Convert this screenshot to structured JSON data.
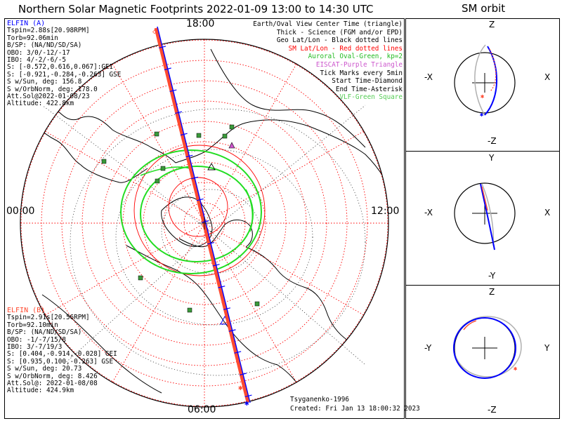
{
  "title": "Northern Solar Magnetic Footprints 2022-01-09 13:00 to 14:30 UTC",
  "orbit_title": "SM orbit",
  "colors": {
    "probe_a": "#0000ff",
    "probe_b": "#ff4a30",
    "geo_grid": "#000000",
    "sm_grid": "#ff0000",
    "auroral_oval": "#22dd22",
    "eiscat": "#cc55cc",
    "vlf": "#3a9a3a",
    "orbit_ghost": "#b0b0b0"
  },
  "probe_a": {
    "name": "ELFIN (A)",
    "lines": [
      "Tspin=2.88s[20.98RPM]",
      "Torb=92.06min",
      "B/SP: (NA/ND/SD/SA)",
      "OBO: 3/0/-12/-17",
      "IBO: 4/-2/-6/-5",
      "S: [-0.572,0.616,0.067]:GEI",
      "S: [-0.921,-0.284,-0.263] GSE",
      "S w/Sun, deg: 156.8",
      "S w/OrbNorm, deg: 178.0",
      "Att.Sol@2022-01-08/23",
      "Altitude: 422.8km"
    ]
  },
  "probe_b": {
    "name": "ELFIN (B)",
    "lines": [
      "Tspin=2.91s[20.56RPM]",
      "Torb=92.10min",
      "B/SP: (NA/ND/SD/SA)",
      "OBO: -1/-7/15/8",
      "IBO: 3/-7/19/3",
      "S: [0.404,-0.914,-0.028] GEI",
      "S: [0.935,0.100,-0.263] GSE",
      "S w/Sun, deg: 20.73",
      "S w/OrbNorm, deg: 8.426",
      "Att.Sol@: 2022-01-08/08",
      "Altitude: 424.9km"
    ]
  },
  "legend": [
    {
      "text": "Earth/Oval View Center Time (triangle)",
      "color": "#000000"
    },
    {
      "text": "Thick - Science (FGM and/or EPD)",
      "color": "#000000"
    },
    {
      "text": "Geo Lat/Lon - Black dotted lines",
      "color": "#000000"
    },
    {
      "text": "SM Lat/Lon - Red dotted lines",
      "color": "#ff0000"
    },
    {
      "text": "Auroral Oval-Green, kp=2",
      "color": "#22bb22"
    },
    {
      "text": "EISCAT-Purple Triangle",
      "color": "#cc55cc"
    },
    {
      "text": "Tick Marks every 5min",
      "color": "#000000"
    },
    {
      "text": "Start Time-Diamond",
      "color": "#000000"
    },
    {
      "text": "End Time-Asterisk",
      "color": "#000000"
    },
    {
      "text": "VLF-Green Square",
      "color": "#55cc55"
    }
  ],
  "footer": {
    "model": "Tsyganenko-1996",
    "created": "Created: Fri Jan 13 18:00:32 2023"
  },
  "chart_data": [
    {
      "type": "polar-map",
      "hour_labels": {
        "top": "18:00",
        "left": "00:00",
        "right": "12:00",
        "bottom": "06:00"
      },
      "sm_latitude_rings_deg": [
        80,
        70,
        60,
        50,
        40,
        30,
        20,
        10,
        0
      ],
      "auroral_oval_kp": 2,
      "tick_interval_min": 5,
      "series": [
        {
          "name": "ELFIN (A)",
          "track": "near 18:00 MLT through pole toward 06:00 MLT"
        },
        {
          "name": "ELFIN (B)",
          "track": "near 18:00 MLT through pole toward 06:00 MLT"
        }
      ]
    },
    {
      "type": "scatter",
      "plane": "X-Z",
      "axes": {
        "up": "Z",
        "down": "-Z",
        "left": "-X",
        "right": "X"
      }
    },
    {
      "type": "scatter",
      "plane": "X-Y",
      "axes": {
        "up": "Y",
        "down": "-Y",
        "left": "-X",
        "right": "X"
      }
    },
    {
      "type": "scatter",
      "plane": "Y-Z",
      "axes": {
        "up": "Z",
        "down": "-Z",
        "left": "-Y",
        "right": "Y"
      }
    }
  ]
}
